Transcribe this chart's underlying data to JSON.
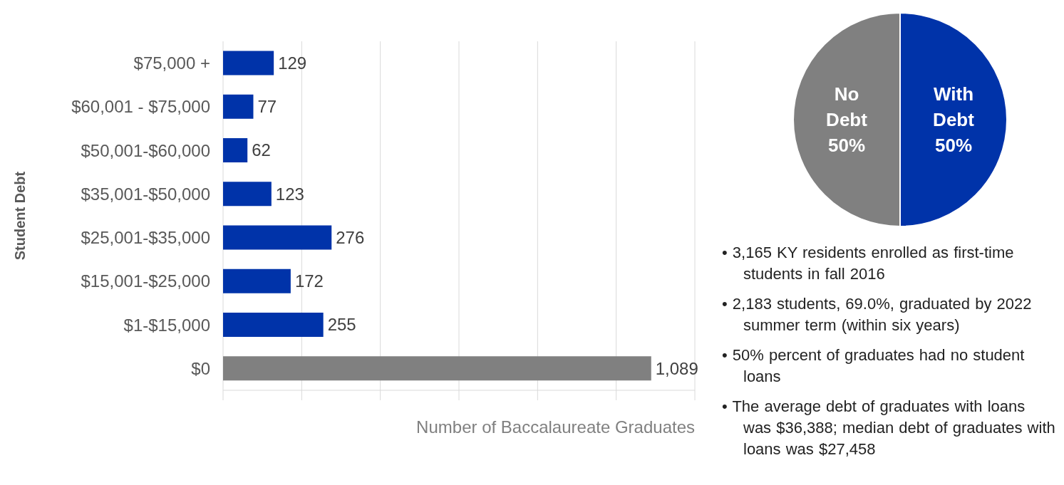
{
  "chart_data": [
    {
      "type": "bar",
      "orientation": "horizontal",
      "ylabel": "Student Debt",
      "xlabel": "Number of Baccalaureate Graduates",
      "categories": [
        "$75,000 +",
        "$60,001 - $75,000",
        "$50,001-$60,000",
        "$35,001-$50,000",
        "$25,001-$35,000",
        "$15,001-$25,000",
        "$1-$15,000",
        "$0"
      ],
      "values": [
        129,
        77,
        62,
        123,
        276,
        172,
        255,
        1089
      ],
      "colors": [
        "#0033a9",
        "#0033a9",
        "#0033a9",
        "#0033a9",
        "#0033a9",
        "#0033a9",
        "#0033a9",
        "#808080"
      ],
      "xlim": [
        0,
        1200
      ],
      "xticks": [
        {
          "value": 0,
          "label": null
        },
        {
          "value": 200,
          "label": null
        },
        {
          "value": 400,
          "label": null
        },
        {
          "value": 600,
          "label": null
        },
        {
          "value": 800,
          "label": null
        },
        {
          "value": 1000,
          "label": null
        },
        {
          "value": 1200,
          "label": null
        }
      ],
      "tick_labels": "y",
      "grid": "x",
      "value_labels": [
        "129",
        "77",
        "62",
        "123",
        "276",
        "172",
        "255",
        "1,089"
      ],
      "legend": false
    },
    {
      "type": "pie",
      "categories": [
        "With Debt",
        "No Debt"
      ],
      "values": [
        50,
        50
      ],
      "colors": [
        "#0033a9",
        "#808080"
      ],
      "value_labels": [
        "50%",
        "50%"
      ],
      "legend": false
    },
    {
      "type": "other",
      "annotations": [
        "• 3,165 KY residents enrolled as first-time students in fall 2016",
        "• 2,183 students, 69.0%, graduated by 2022 summer term (within six years)",
        "• 50% percent of graduates had no student loans",
        "• The average debt of graduates with loans was $36,388; median debt of graduates with loans was $27,458"
      ]
    }
  ]
}
